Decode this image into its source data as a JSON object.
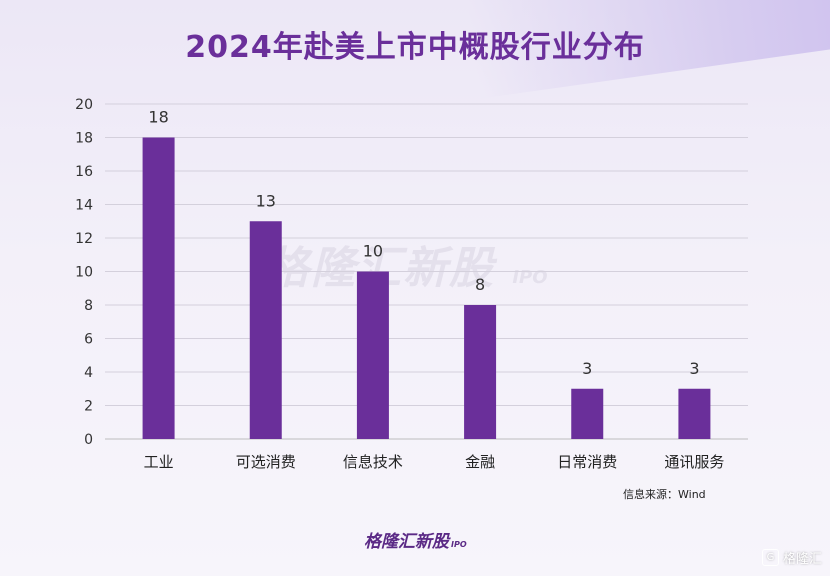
{
  "chart_data": {
    "type": "bar",
    "title": "2024年赴美上市中概股行业分布",
    "categories": [
      "工业",
      "可选消费",
      "信息技术",
      "金融",
      "日常消费",
      "通讯服务"
    ],
    "values": [
      18,
      13,
      10,
      8,
      3,
      3
    ],
    "ylim": [
      0,
      20
    ],
    "yticks": [
      0,
      2,
      4,
      6,
      8,
      10,
      12,
      14,
      16,
      18,
      20
    ],
    "grid": true,
    "bar_color": "#6a2f9a",
    "data_labels": true
  },
  "source_note": "信息来源：Wind",
  "watermark": {
    "name": "格隆汇新股",
    "sub": "IPO"
  },
  "footer_logo": {
    "name": "格隆汇新股",
    "sub": "IPO"
  },
  "corner_logo": {
    "icon": "G",
    "name": "格隆汇"
  }
}
